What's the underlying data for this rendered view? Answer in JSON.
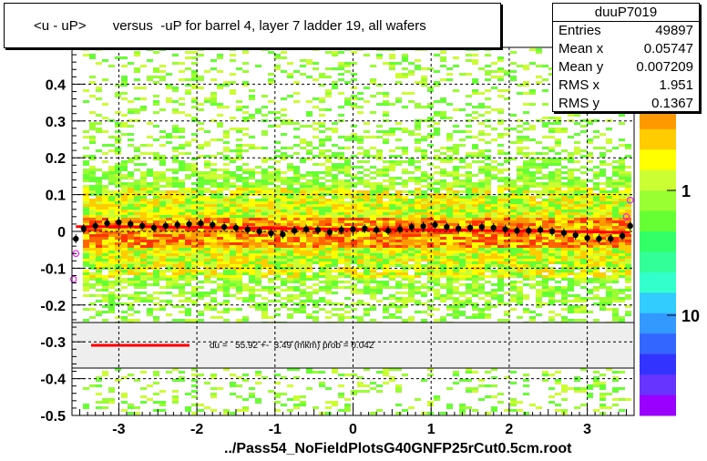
{
  "title": "<u - uP>       versus  -uP for barrel 4, layer 7 ladder 19, all wafers",
  "stats": {
    "name": "duuP7019",
    "rows": [
      {
        "key": "Entries",
        "value": "49897"
      },
      {
        "key": "Mean x",
        "value": "0.05747"
      },
      {
        "key": "Mean y",
        "value": "0.007209"
      },
      {
        "key": "RMS x",
        "value": "1.951"
      },
      {
        "key": "RMS y",
        "value": "0.1367"
      }
    ]
  },
  "file_label": "../Pass54_NoFieldPlotsG40GNFP25rCut0.5cm.root",
  "fit_label": "du =   55.92 +-  3.49 (mkm) prob = 0.042",
  "colors": {
    "fit_line": "#ff0000",
    "profile_points": "#000000",
    "open_markers": "#ff00ff",
    "legend_band": "#eeeeee"
  },
  "chart_data": {
    "type": "heatmap",
    "title": "<u - uP>       versus  -uP for barrel 4, layer 7 ladder 19, all wafers",
    "xlabel": "",
    "ylabel": "",
    "xlim": [
      -3.6,
      3.6
    ],
    "ylim": [
      -0.5,
      0.5
    ],
    "grid": true,
    "x_ticks": [
      "-3",
      "-2",
      "-1",
      "0",
      "1",
      "2",
      "3"
    ],
    "x_tick_values": [
      -3,
      -2,
      -1,
      0,
      1,
      2,
      3
    ],
    "y_ticks": [
      "0.4",
      "0.3",
      "0.2",
      "0.1",
      "0",
      "-0.1",
      "-0.2",
      "-0.3",
      "-0.4",
      "-0.5"
    ],
    "y_tick_values": [
      0.4,
      0.3,
      0.2,
      0.1,
      0,
      -0.1,
      -0.2,
      -0.3,
      -0.4,
      -0.5
    ],
    "z_scale": "log",
    "z_ticks": [
      "1",
      "10"
    ],
    "z_tick_values": [
      1,
      10
    ],
    "fit_line": {
      "x": [
        -3.55,
        -3.0,
        -2.0,
        -1.0,
        0.0,
        1.0,
        2.0,
        3.0,
        3.55
      ],
      "y": [
        0.013,
        0.013,
        0.011,
        0.008,
        0.006,
        0.004,
        0.002,
        -0.001,
        -0.003
      ]
    },
    "profile": {
      "x": [
        -3.55,
        -3.45,
        -3.3,
        -3.15,
        -3.0,
        -2.85,
        -2.7,
        -2.55,
        -2.4,
        -2.25,
        -2.1,
        -1.95,
        -1.8,
        -1.65,
        -1.5,
        -1.35,
        -1.2,
        -1.05,
        -0.9,
        -0.75,
        -0.6,
        -0.45,
        -0.3,
        -0.15,
        0.0,
        0.15,
        0.3,
        0.45,
        0.6,
        0.75,
        0.9,
        1.05,
        1.2,
        1.35,
        1.5,
        1.65,
        1.8,
        1.95,
        2.1,
        2.25,
        2.4,
        2.55,
        2.7,
        2.85,
        3.0,
        3.15,
        3.3,
        3.45,
        3.55
      ],
      "y": [
        -0.02,
        0.008,
        0.015,
        0.022,
        0.025,
        0.02,
        0.015,
        0.01,
        0.015,
        0.018,
        0.02,
        0.022,
        0.018,
        0.012,
        0.01,
        0.005,
        0.0,
        -0.005,
        -0.008,
        0.002,
        0.006,
        0.004,
        -0.002,
        0.004,
        0.006,
        0.008,
        0.004,
        0.002,
        0.006,
        0.012,
        0.014,
        0.018,
        0.012,
        0.008,
        0.01,
        0.012,
        0.01,
        0.006,
        0.002,
        0.002,
        0.004,
        0.0,
        -0.004,
        -0.01,
        -0.018,
        -0.02,
        -0.02,
        -0.012,
        0.015
      ]
    },
    "open_markers": {
      "x": [
        -3.58,
        -3.55,
        3.5,
        3.55
      ],
      "y": [
        -0.13,
        -0.06,
        0.04,
        0.085
      ]
    }
  }
}
